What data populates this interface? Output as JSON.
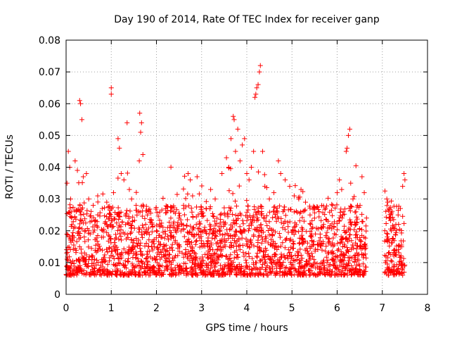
{
  "chart_data": {
    "type": "scatter",
    "title": "Day 190 of 2014, Rate Of TEC Index for receiver ganp",
    "xlabel": "GPS time / hours",
    "ylabel": "ROTI / TECUs",
    "xlim": [
      0,
      8
    ],
    "ylim": [
      0,
      0.08
    ],
    "grid": true,
    "marker": "+",
    "color": "#ff0000",
    "x_ticks": [
      "0",
      "1",
      "2",
      "3",
      "4",
      "5",
      "6",
      "7",
      "8"
    ],
    "y_ticks": [
      "0",
      "0.01",
      "0.02",
      "0.03",
      "0.04",
      "0.05",
      "0.06",
      "0.07",
      "0.08"
    ],
    "series": [
      {
        "name": "ROTI",
        "points": [
          [
            0.05,
            0.045
          ],
          [
            0.08,
            0.04
          ],
          [
            0.02,
            0.035
          ],
          [
            0.1,
            0.03
          ],
          [
            0.2,
            0.042
          ],
          [
            0.25,
            0.039
          ],
          [
            0.3,
            0.061
          ],
          [
            0.32,
            0.06
          ],
          [
            0.35,
            0.055
          ],
          [
            0.38,
            0.037
          ],
          [
            0.45,
            0.038
          ],
          [
            0.5,
            0.03
          ],
          [
            0.6,
            0.028
          ],
          [
            0.7,
            0.031
          ],
          [
            0.8,
            0.027
          ],
          [
            0.9,
            0.029
          ],
          [
            1.0,
            0.065
          ],
          [
            1.0,
            0.063
          ],
          [
            1.05,
            0.032
          ],
          [
            1.15,
            0.049
          ],
          [
            1.18,
            0.046
          ],
          [
            1.22,
            0.038
          ],
          [
            1.28,
            0.036
          ],
          [
            1.35,
            0.054
          ],
          [
            1.4,
            0.033
          ],
          [
            1.45,
            0.03
          ],
          [
            1.55,
            0.028
          ],
          [
            1.63,
            0.057
          ],
          [
            1.65,
            0.051
          ],
          [
            1.67,
            0.054
          ],
          [
            1.7,
            0.044
          ],
          [
            1.62,
            0.042
          ],
          [
            1.8,
            0.025
          ],
          [
            1.9,
            0.022
          ],
          [
            2.0,
            0.02
          ],
          [
            2.1,
            0.018
          ],
          [
            2.2,
            0.019
          ],
          [
            2.3,
            0.02
          ],
          [
            2.4,
            0.021
          ],
          [
            2.5,
            0.024
          ],
          [
            2.6,
            0.028
          ],
          [
            2.7,
            0.038
          ],
          [
            2.75,
            0.036
          ],
          [
            2.8,
            0.031
          ],
          [
            2.9,
            0.037
          ],
          [
            3.0,
            0.026
          ],
          [
            3.1,
            0.027
          ],
          [
            3.2,
            0.033
          ],
          [
            3.3,
            0.03
          ],
          [
            3.45,
            0.038
          ],
          [
            3.55,
            0.043
          ],
          [
            3.6,
            0.04
          ],
          [
            3.65,
            0.049
          ],
          [
            3.7,
            0.056
          ],
          [
            3.72,
            0.055
          ],
          [
            3.75,
            0.045
          ],
          [
            3.8,
            0.052
          ],
          [
            3.85,
            0.042
          ],
          [
            3.9,
            0.047
          ],
          [
            3.95,
            0.049
          ],
          [
            4.0,
            0.038
          ],
          [
            4.05,
            0.036
          ],
          [
            4.1,
            0.04
          ],
          [
            4.15,
            0.045
          ],
          [
            4.18,
            0.062
          ],
          [
            4.2,
            0.063
          ],
          [
            4.22,
            0.065
          ],
          [
            4.25,
            0.066
          ],
          [
            4.28,
            0.07
          ],
          [
            4.3,
            0.072
          ],
          [
            4.35,
            0.045
          ],
          [
            4.4,
            0.034
          ],
          [
            4.5,
            0.03
          ],
          [
            4.6,
            0.032
          ],
          [
            4.7,
            0.042
          ],
          [
            4.75,
            0.038
          ],
          [
            4.85,
            0.036
          ],
          [
            4.95,
            0.034
          ],
          [
            5.05,
            0.031
          ],
          [
            5.15,
            0.03
          ],
          [
            5.2,
            0.033
          ],
          [
            5.3,
            0.029
          ],
          [
            5.4,
            0.025
          ],
          [
            5.5,
            0.024
          ],
          [
            5.6,
            0.026
          ],
          [
            5.7,
            0.022
          ],
          [
            5.8,
            0.023
          ],
          [
            5.9,
            0.028
          ],
          [
            6.0,
            0.032
          ],
          [
            6.05,
            0.036
          ],
          [
            6.1,
            0.033
          ],
          [
            6.2,
            0.045
          ],
          [
            6.22,
            0.046
          ],
          [
            6.25,
            0.05
          ],
          [
            6.28,
            0.052
          ],
          [
            6.3,
            0.035
          ],
          [
            6.35,
            0.03
          ],
          [
            6.45,
            0.028
          ],
          [
            6.55,
            0.037
          ],
          [
            6.6,
            0.032
          ],
          [
            7.1,
            0.03
          ],
          [
            7.12,
            0.029
          ],
          [
            7.15,
            0.024
          ],
          [
            7.2,
            0.02
          ],
          [
            7.3,
            0.022
          ],
          [
            7.35,
            0.025
          ],
          [
            7.4,
            0.027
          ],
          [
            7.45,
            0.034
          ],
          [
            7.48,
            0.038
          ],
          [
            7.5,
            0.036
          ]
        ]
      }
    ]
  }
}
